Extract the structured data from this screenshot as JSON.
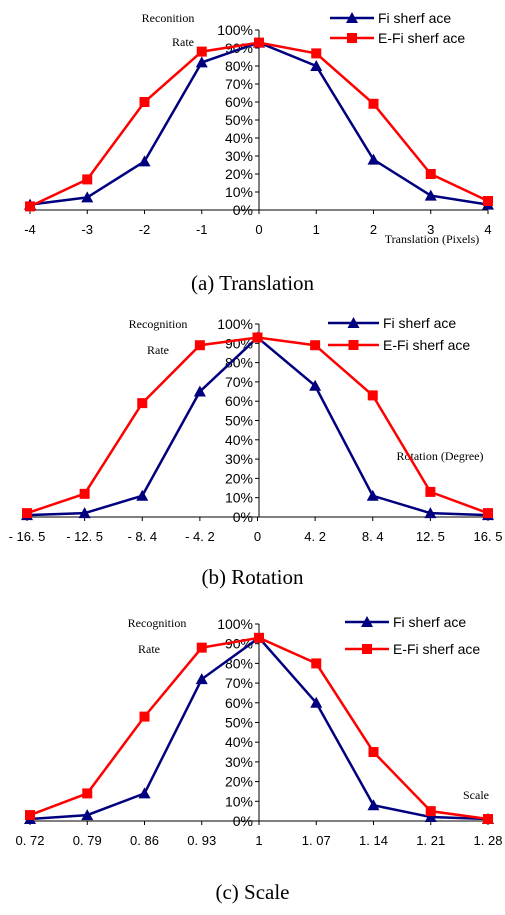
{
  "chart_data": [
    {
      "type": "line",
      "caption": "(a) Translation",
      "ylabel_line1": "Reconition",
      "ylabel_line2": "Rate",
      "xlabel": "Translation (Pixels)",
      "categories": [
        "-4",
        "-3",
        "-2",
        "-1",
        "0",
        "1",
        "2",
        "3",
        "4"
      ],
      "yticks": [
        "0%",
        "10%",
        "20%",
        "30%",
        "40%",
        "50%",
        "60%",
        "70%",
        "80%",
        "90%",
        "100%"
      ],
      "ylim": [
        0,
        100
      ],
      "legend_position": "top-right",
      "series": [
        {
          "name": "Fi sherf ace",
          "color": "#00007f",
          "marker": "triangle",
          "values": [
            3,
            7,
            27,
            82,
            93,
            80,
            28,
            8,
            3
          ]
        },
        {
          "name": "E-Fi sherf ace",
          "color": "#ff0000",
          "marker": "square",
          "values": [
            2,
            17,
            60,
            88,
            93,
            87,
            59,
            20,
            5
          ]
        }
      ]
    },
    {
      "type": "line",
      "caption": "(b) Rotation",
      "ylabel_line1": "Recognition",
      "ylabel_line2": "Rate",
      "xlabel": "Rotation (Degree)",
      "categories": [
        "- 16. 5",
        "- 12. 5",
        "- 8. 4",
        "- 4. 2",
        "0",
        "4. 2",
        "8. 4",
        "12. 5",
        "16. 5"
      ],
      "yticks": [
        "0%",
        "10%",
        "20%",
        "30%",
        "40%",
        "50%",
        "60%",
        "70%",
        "80%",
        "90%",
        "100%"
      ],
      "ylim": [
        0,
        100
      ],
      "legend_position": "top-right",
      "series": [
        {
          "name": "Fi sherf ace",
          "color": "#00007f",
          "marker": "triangle",
          "values": [
            1,
            2,
            11,
            65,
            93,
            68,
            11,
            2,
            1
          ]
        },
        {
          "name": "E-Fi sherf ace",
          "color": "#ff0000",
          "marker": "square",
          "values": [
            2,
            12,
            59,
            89,
            93,
            89,
            63,
            13,
            2
          ]
        }
      ]
    },
    {
      "type": "line",
      "caption": "(c) Scale",
      "ylabel_line1": "Recognition",
      "ylabel_line2": "Rate",
      "xlabel": "Scale",
      "categories": [
        "0. 72",
        "0. 79",
        "0. 86",
        "0. 93",
        "1",
        "1. 07",
        "1. 14",
        "1. 21",
        "1. 28"
      ],
      "yticks": [
        "0%",
        "10%",
        "20%",
        "30%",
        "40%",
        "50%",
        "60%",
        "70%",
        "80%",
        "90%",
        "100%"
      ],
      "ylim": [
        0,
        100
      ],
      "legend_position": "top-right",
      "series": [
        {
          "name": "Fi sherf ace",
          "color": "#00007f",
          "marker": "triangle",
          "values": [
            1,
            3,
            14,
            72,
            93,
            60,
            8,
            2,
            1
          ]
        },
        {
          "name": "E-Fi sherf ace",
          "color": "#ff0000",
          "marker": "square",
          "values": [
            3,
            14,
            53,
            88,
            93,
            80,
            35,
            5,
            1
          ]
        }
      ]
    }
  ]
}
